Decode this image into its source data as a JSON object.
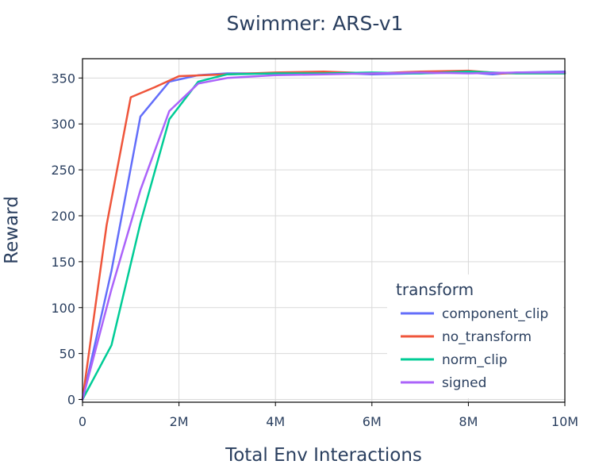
{
  "chart_data": {
    "type": "line",
    "title": "Swimmer: ARS-v1",
    "xlabel": "Total Env Interactions",
    "ylabel": "Reward",
    "xlim": [
      0,
      10000000
    ],
    "ylim": [
      -3,
      371
    ],
    "x_ticks": [
      {
        "value": 0,
        "label": "0"
      },
      {
        "value": 2000000,
        "label": "2M"
      },
      {
        "value": 4000000,
        "label": "4M"
      },
      {
        "value": 6000000,
        "label": "6M"
      },
      {
        "value": 8000000,
        "label": "8M"
      },
      {
        "value": 10000000,
        "label": "10M"
      }
    ],
    "y_ticks": [
      {
        "value": 0,
        "label": "0"
      },
      {
        "value": 50,
        "label": "50"
      },
      {
        "value": 100,
        "label": "100"
      },
      {
        "value": 150,
        "label": "150"
      },
      {
        "value": 200,
        "label": "200"
      },
      {
        "value": 250,
        "label": "250"
      },
      {
        "value": 300,
        "label": "300"
      },
      {
        "value": 350,
        "label": "350"
      }
    ],
    "grid": true,
    "legend": {
      "title": "transform",
      "placement": "bottom-right"
    },
    "series": [
      {
        "name": "component_clip",
        "color": "#636efa",
        "points": [
          [
            0,
            0
          ],
          [
            600000,
            140
          ],
          [
            1200000,
            308
          ],
          [
            1800000,
            346
          ],
          [
            2400000,
            353
          ],
          [
            3000000,
            355
          ],
          [
            4000000,
            355
          ],
          [
            5000000,
            356
          ],
          [
            6000000,
            354
          ],
          [
            7000000,
            355
          ],
          [
            8000000,
            356
          ],
          [
            8500000,
            354
          ],
          [
            9000000,
            356
          ],
          [
            10000000,
            357
          ]
        ]
      },
      {
        "name": "no_transform",
        "color": "#ef553b",
        "points": [
          [
            0,
            0
          ],
          [
            500000,
            190
          ],
          [
            1000000,
            329
          ],
          [
            1500000,
            340
          ],
          [
            2000000,
            352
          ],
          [
            3000000,
            354
          ],
          [
            4000000,
            356
          ],
          [
            5000000,
            357
          ],
          [
            6000000,
            355
          ],
          [
            7000000,
            357
          ],
          [
            8000000,
            358
          ],
          [
            8700000,
            355
          ],
          [
            9500000,
            355
          ],
          [
            10000000,
            355
          ]
        ]
      },
      {
        "name": "norm_clip",
        "color": "#00cc96",
        "points": [
          [
            0,
            0
          ],
          [
            600000,
            59
          ],
          [
            1200000,
            192
          ],
          [
            1800000,
            305
          ],
          [
            2400000,
            346
          ],
          [
            3000000,
            354
          ],
          [
            4000000,
            355
          ],
          [
            5000000,
            355
          ],
          [
            6000000,
            356
          ],
          [
            7000000,
            355
          ],
          [
            8000000,
            357
          ],
          [
            9000000,
            355
          ],
          [
            10000000,
            355
          ]
        ]
      },
      {
        "name": "signed",
        "color": "#ab63fa",
        "points": [
          [
            0,
            0
          ],
          [
            600000,
            120
          ],
          [
            1200000,
            228
          ],
          [
            1800000,
            314
          ],
          [
            2400000,
            344
          ],
          [
            3000000,
            350
          ],
          [
            4000000,
            353
          ],
          [
            5000000,
            354
          ],
          [
            6000000,
            355
          ],
          [
            7000000,
            356
          ],
          [
            8000000,
            355
          ],
          [
            9000000,
            356
          ],
          [
            10000000,
            356
          ]
        ]
      }
    ]
  }
}
